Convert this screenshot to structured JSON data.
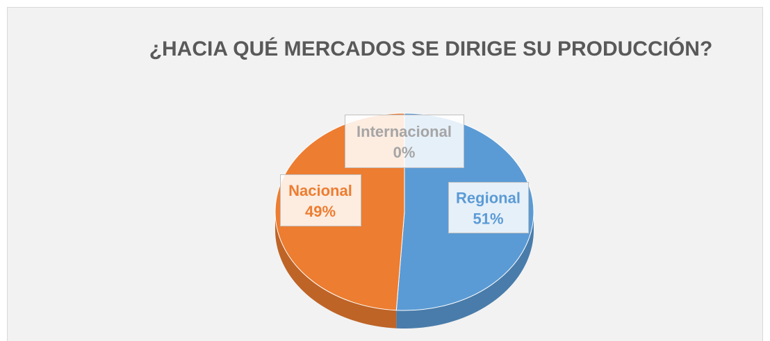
{
  "chart_data": {
    "type": "pie",
    "title": "¿HACIA QUÉ MERCADOS SE DIRIGE SU PRODUCCIÓN?",
    "categories": [
      "Regional",
      "Nacional",
      "Internacional"
    ],
    "values": [
      51,
      49,
      0
    ],
    "value_labels": [
      "51%",
      "49%",
      "0%"
    ],
    "colors": [
      "#5b9bd5",
      "#ed7d31",
      "#a5a5a5"
    ]
  }
}
